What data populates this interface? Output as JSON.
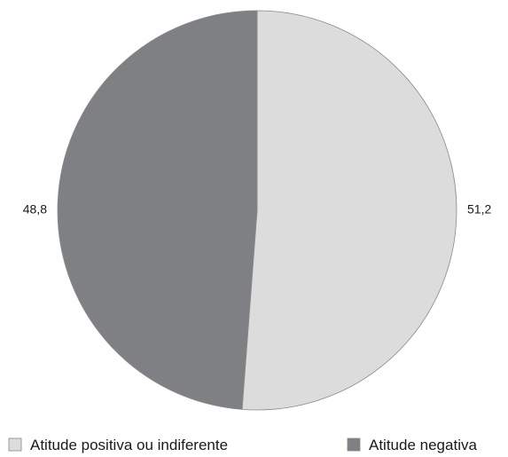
{
  "chart_data": {
    "type": "pie",
    "start_angle": "12 o'clock",
    "direction": "clockwise",
    "slices": [
      {
        "label": "Atitude positiva ou indiferente",
        "value": 51.2,
        "value_text": "51,2",
        "color": "#dcdcdd"
      },
      {
        "label": "Atitude negativa",
        "value": 48.8,
        "value_text": "48,8",
        "color": "#7f8083"
      }
    ],
    "legend_position": "bottom",
    "slice_border_color": "#8a8a8a"
  }
}
